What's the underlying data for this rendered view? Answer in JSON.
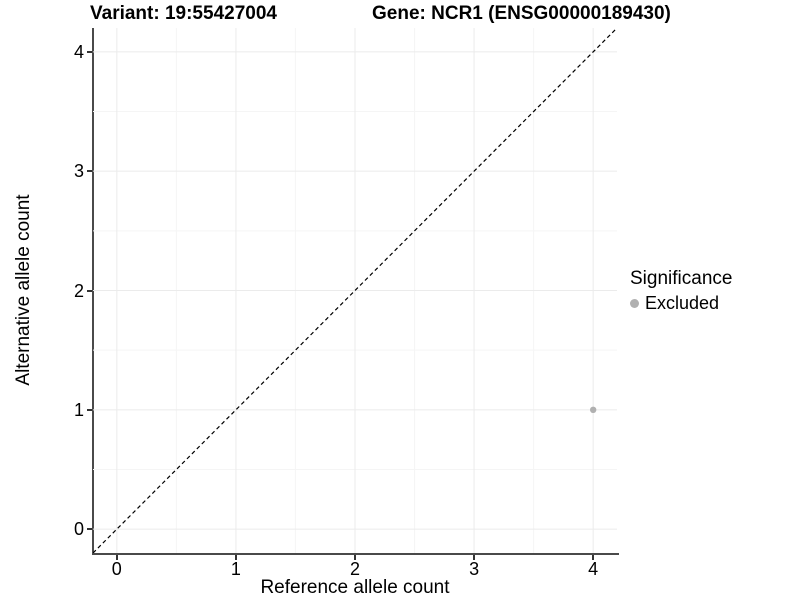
{
  "titles": {
    "variant": "Variant: 19:55427004",
    "gene": "Gene: NCR1 (ENSG00000189430)"
  },
  "legend": {
    "title": "Significance",
    "items": [
      {
        "label": "Excluded",
        "color": "#B0B0B0"
      }
    ]
  },
  "chart_data": {
    "type": "scatter",
    "title": "Variant: 19:55427004    Gene: NCR1 (ENSG00000189430)",
    "xlabel": "Reference allele count",
    "ylabel": "Alternative allele count",
    "xlim": [
      -0.2,
      4.2
    ],
    "ylim": [
      -0.2,
      4.2
    ],
    "x_ticks": [
      0,
      1,
      2,
      3,
      4
    ],
    "y_ticks": [
      0,
      1,
      2,
      3,
      4
    ],
    "x_minor": [
      0.5,
      1.5,
      2.5,
      3.5
    ],
    "y_minor": [
      0.5,
      1.5,
      2.5,
      3.5
    ],
    "grid": "major and minor, light grey on white",
    "legend_position": "right",
    "series": [
      {
        "name": "Excluded",
        "color": "#B0B0B0",
        "point_radius": 3.2,
        "points": [
          [
            4,
            1
          ]
        ]
      }
    ],
    "reference_line": {
      "type": "identity y=x",
      "style": "dashed",
      "color": "#000000"
    },
    "colors": {
      "grid_major": "#EBEBEB",
      "grid_minor": "#F5F5F5",
      "axis_line": "#4a4a4a",
      "text": "#000000"
    }
  }
}
